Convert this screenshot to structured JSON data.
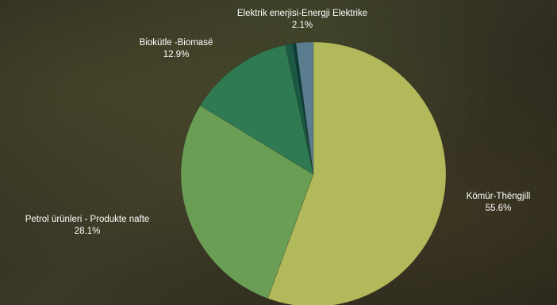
{
  "chart_data": {
    "type": "pie",
    "title": "",
    "slices": [
      {
        "label": "Kömür-Thëngjill",
        "value": 55.6,
        "value_label": "55.6%",
        "color": "#b2b95a"
      },
      {
        "label": "Petrol ürünleri - Produkte nafte",
        "value": 28.1,
        "value_label": "28.1%",
        "color": "#6b9e55"
      },
      {
        "label": "Biokütle -Biomasë",
        "value": 12.9,
        "value_label": "12.9%",
        "color": "#2f7a52"
      },
      {
        "label": "",
        "value": 0.9,
        "value_label": "",
        "color": "#1a5a44"
      },
      {
        "label": "",
        "value": 0.4,
        "value_label": "",
        "color": "#0b3d38"
      },
      {
        "label": "Elektrik enerjisi-Energji Elektrike",
        "value": 2.1,
        "value_label": "2.1%",
        "color": "#5a7e90"
      }
    ],
    "start_angle_deg": 0,
    "direction": "clockwise",
    "legend": "none"
  }
}
